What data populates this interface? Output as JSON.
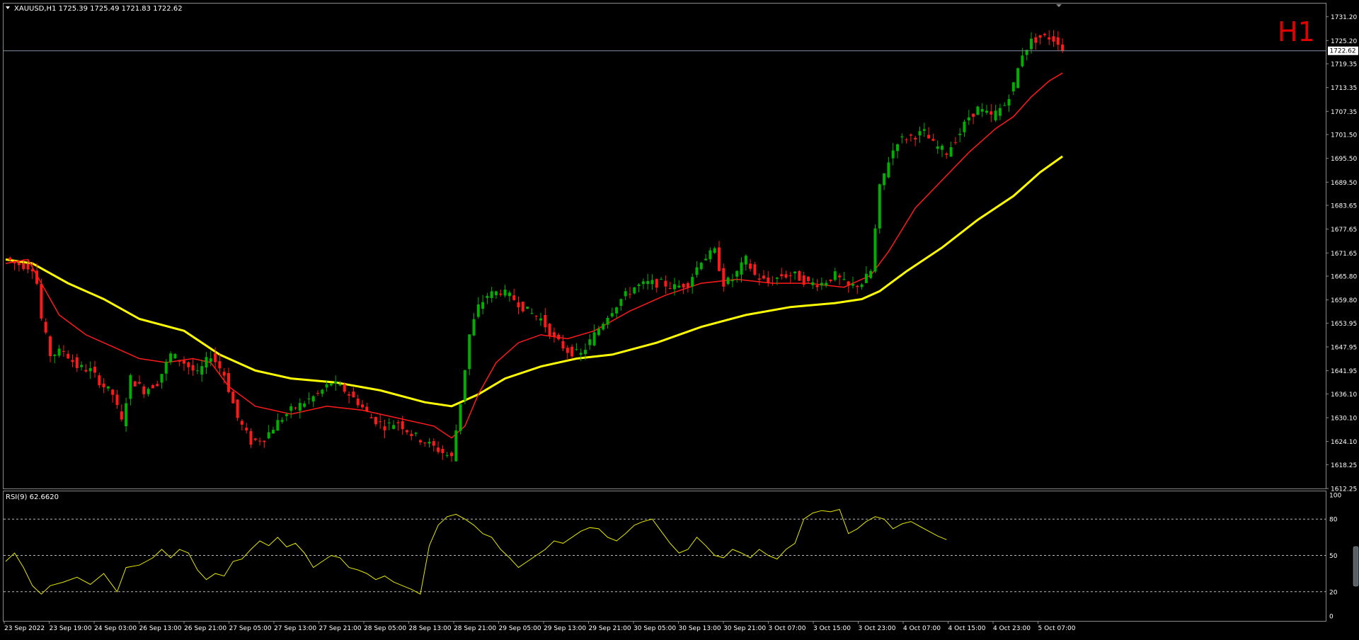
{
  "header": {
    "symbol_line": "XAUUSD,H1  1725.39 1725.49 1721.83 1722.62",
    "timeframe_badge": "H1"
  },
  "price_axis": {
    "ticks": [
      "1731.20",
      "1725.20",
      "1719.35",
      "1713.35",
      "1707.35",
      "1701.50",
      "1695.50",
      "1689.50",
      "1683.65",
      "1677.65",
      "1671.65",
      "1665.80",
      "1659.80",
      "1653.95",
      "1647.95",
      "1641.95",
      "1636.10",
      "1630.10",
      "1624.10",
      "1618.25",
      "1612.25"
    ],
    "current_price_label": "1722.62"
  },
  "rsi_panel": {
    "label": "RSI(9) 62.6620",
    "levels": [
      "100",
      "80",
      "50",
      "20",
      "0"
    ]
  },
  "time_axis": {
    "labels": [
      "23 Sep 2022",
      "23 Sep 19:00",
      "24 Sep 03:00",
      "26 Sep 13:00",
      "26 Sep 21:00",
      "27 Sep 05:00",
      "27 Sep 13:00",
      "27 Sep 21:00",
      "28 Sep 05:00",
      "28 Sep 13:00",
      "28 Sep 21:00",
      "29 Sep 05:00",
      "29 Sep 13:00",
      "29 Sep 21:00",
      "30 Sep 05:00",
      "30 Sep 13:00",
      "30 Sep 21:00",
      "3 Oct 07:00",
      "3 Oct 15:00",
      "3 Oct 23:00",
      "4 Oct 07:00",
      "4 Oct 15:00",
      "4 Oct 23:00",
      "5 Oct 07:00"
    ]
  },
  "chart_data": {
    "type": "candlestick",
    "symbol": "XAUUSD",
    "timeframe": "H1",
    "ylim": [
      1612.25,
      1734.0
    ],
    "current_price": 1722.62,
    "rsi_ylim": [
      0,
      100
    ],
    "rsi_levels": [
      20,
      50,
      80
    ],
    "rsi_last": 62.662,
    "colors": {
      "bull": "#00B000",
      "bear": "#FF1A1A",
      "ma_fast": "#FF1A1A",
      "ma_slow": "#FFFF00",
      "rsi": "#E6E600",
      "axis_text": "#FFFFFF",
      "grid": "#5A5A5A",
      "badge": "#E00000"
    },
    "anchors": [
      [
        0,
        1670.5
      ],
      [
        2,
        1669
      ],
      [
        6,
        1668
      ],
      [
        7,
        1664
      ],
      [
        8,
        1655
      ],
      [
        10,
        1646
      ],
      [
        13,
        1647
      ],
      [
        16,
        1643
      ],
      [
        19,
        1642
      ],
      [
        22,
        1638
      ],
      [
        24,
        1636
      ],
      [
        26,
        1629
      ],
      [
        28,
        1640
      ],
      [
        31,
        1637
      ],
      [
        34,
        1639
      ],
      [
        37,
        1646
      ],
      [
        40,
        1644
      ],
      [
        43,
        1641
      ],
      [
        46,
        1646
      ],
      [
        49,
        1641
      ],
      [
        52,
        1630
      ],
      [
        55,
        1624
      ],
      [
        58,
        1625
      ],
      [
        61,
        1629
      ],
      [
        64,
        1632
      ],
      [
        67,
        1634
      ],
      [
        70,
        1636
      ],
      [
        73,
        1639
      ],
      [
        76,
        1637
      ],
      [
        79,
        1634
      ],
      [
        82,
        1630
      ],
      [
        85,
        1628
      ],
      [
        88,
        1629
      ],
      [
        91,
        1626
      ],
      [
        94,
        1624
      ],
      [
        97,
        1622
      ],
      [
        100,
        1620
      ],
      [
        102,
        1634
      ],
      [
        104,
        1651
      ],
      [
        106,
        1658
      ],
      [
        108,
        1661
      ],
      [
        111,
        1662
      ],
      [
        114,
        1660
      ],
      [
        117,
        1657
      ],
      [
        120,
        1655
      ],
      [
        123,
        1650
      ],
      [
        126,
        1647
      ],
      [
        129,
        1646
      ],
      [
        132,
        1651
      ],
      [
        135,
        1656
      ],
      [
        138,
        1660
      ],
      [
        141,
        1663
      ],
      [
        144,
        1664
      ],
      [
        147,
        1664
      ],
      [
        150,
        1663
      ],
      [
        153,
        1664
      ],
      [
        156,
        1670
      ],
      [
        159,
        1672
      ],
      [
        161,
        1664
      ],
      [
        163,
        1665
      ],
      [
        166,
        1670
      ],
      [
        168,
        1666
      ],
      [
        171,
        1664
      ],
      [
        174,
        1666
      ],
      [
        177,
        1666
      ],
      [
        180,
        1664
      ],
      [
        183,
        1664
      ],
      [
        186,
        1666
      ],
      [
        189,
        1663
      ],
      [
        192,
        1664
      ],
      [
        194,
        1667
      ],
      [
        196,
        1688
      ],
      [
        198,
        1695
      ],
      [
        200,
        1700
      ],
      [
        203,
        1701
      ],
      [
        206,
        1702
      ],
      [
        208,
        1699
      ],
      [
        211,
        1697
      ],
      [
        214,
        1702
      ],
      [
        216,
        1706
      ],
      [
        218,
        1708
      ],
      [
        221,
        1706
      ],
      [
        224,
        1709
      ],
      [
        226,
        1714
      ],
      [
        228,
        1722
      ],
      [
        230,
        1725
      ],
      [
        232,
        1726
      ],
      [
        234,
        1726
      ],
      [
        236,
        1725
      ],
      [
        237,
        1722.6
      ]
    ],
    "ma_fast": [
      [
        0,
        1669
      ],
      [
        5,
        1670
      ],
      [
        8,
        1664
      ],
      [
        12,
        1656
      ],
      [
        18,
        1651
      ],
      [
        24,
        1648
      ],
      [
        30,
        1645
      ],
      [
        36,
        1644
      ],
      [
        42,
        1645
      ],
      [
        46,
        1644
      ],
      [
        50,
        1638
      ],
      [
        56,
        1633
      ],
      [
        64,
        1631
      ],
      [
        72,
        1633
      ],
      [
        80,
        1632
      ],
      [
        88,
        1630
      ],
      [
        96,
        1628
      ],
      [
        100,
        1625
      ],
      [
        103,
        1628
      ],
      [
        106,
        1636
      ],
      [
        110,
        1644
      ],
      [
        115,
        1649
      ],
      [
        120,
        1651
      ],
      [
        126,
        1650
      ],
      [
        132,
        1652
      ],
      [
        140,
        1657
      ],
      [
        148,
        1661
      ],
      [
        156,
        1664
      ],
      [
        164,
        1665
      ],
      [
        172,
        1664
      ],
      [
        180,
        1664
      ],
      [
        188,
        1663
      ],
      [
        194,
        1666
      ],
      [
        198,
        1672
      ],
      [
        204,
        1683
      ],
      [
        210,
        1690
      ],
      [
        216,
        1697
      ],
      [
        222,
        1703
      ],
      [
        226,
        1706
      ],
      [
        230,
        1711
      ],
      [
        234,
        1715
      ],
      [
        237,
        1717
      ]
    ],
    "ma_slow": [
      [
        0,
        1670
      ],
      [
        6,
        1669
      ],
      [
        14,
        1664
      ],
      [
        22,
        1660
      ],
      [
        30,
        1655
      ],
      [
        40,
        1652
      ],
      [
        48,
        1646
      ],
      [
        56,
        1642
      ],
      [
        64,
        1640
      ],
      [
        74,
        1639
      ],
      [
        84,
        1637
      ],
      [
        94,
        1634
      ],
      [
        100,
        1633
      ],
      [
        106,
        1636
      ],
      [
        112,
        1640
      ],
      [
        120,
        1643
      ],
      [
        128,
        1645
      ],
      [
        136,
        1646
      ],
      [
        146,
        1649
      ],
      [
        156,
        1653
      ],
      [
        166,
        1656
      ],
      [
        176,
        1658
      ],
      [
        186,
        1659
      ],
      [
        192,
        1660
      ],
      [
        196,
        1662
      ],
      [
        202,
        1667
      ],
      [
        210,
        1673
      ],
      [
        218,
        1680
      ],
      [
        226,
        1686
      ],
      [
        232,
        1692
      ],
      [
        237,
        1696
      ]
    ],
    "rsi": [
      [
        0,
        45
      ],
      [
        2,
        52
      ],
      [
        4,
        40
      ],
      [
        6,
        25
      ],
      [
        8,
        18
      ],
      [
        10,
        25
      ],
      [
        13,
        28
      ],
      [
        16,
        32
      ],
      [
        19,
        26
      ],
      [
        22,
        35
      ],
      [
        25,
        20
      ],
      [
        27,
        40
      ],
      [
        30,
        42
      ],
      [
        33,
        48
      ],
      [
        35,
        55
      ],
      [
        37,
        48
      ],
      [
        39,
        55
      ],
      [
        41,
        52
      ],
      [
        43,
        38
      ],
      [
        45,
        30
      ],
      [
        47,
        35
      ],
      [
        49,
        33
      ],
      [
        51,
        45
      ],
      [
        53,
        47
      ],
      [
        55,
        55
      ],
      [
        57,
        62
      ],
      [
        59,
        58
      ],
      [
        61,
        65
      ],
      [
        63,
        57
      ],
      [
        65,
        60
      ],
      [
        67,
        52
      ],
      [
        69,
        40
      ],
      [
        71,
        45
      ],
      [
        73,
        50
      ],
      [
        75,
        48
      ],
      [
        77,
        40
      ],
      [
        79,
        38
      ],
      [
        81,
        35
      ],
      [
        83,
        30
      ],
      [
        85,
        33
      ],
      [
        87,
        28
      ],
      [
        89,
        25
      ],
      [
        91,
        22
      ],
      [
        93,
        18
      ],
      [
        95,
        58
      ],
      [
        97,
        75
      ],
      [
        99,
        82
      ],
      [
        101,
        84
      ],
      [
        103,
        80
      ],
      [
        105,
        75
      ],
      [
        107,
        68
      ],
      [
        109,
        65
      ],
      [
        111,
        55
      ],
      [
        113,
        48
      ],
      [
        115,
        40
      ],
      [
        117,
        45
      ],
      [
        119,
        50
      ],
      [
        121,
        55
      ],
      [
        123,
        62
      ],
      [
        125,
        60
      ],
      [
        127,
        65
      ],
      [
        129,
        70
      ],
      [
        131,
        73
      ],
      [
        133,
        72
      ],
      [
        135,
        65
      ],
      [
        137,
        62
      ],
      [
        139,
        68
      ],
      [
        141,
        75
      ],
      [
        143,
        78
      ],
      [
        145,
        80
      ],
      [
        147,
        70
      ],
      [
        149,
        60
      ],
      [
        151,
        52
      ],
      [
        153,
        55
      ],
      [
        155,
        65
      ],
      [
        157,
        58
      ],
      [
        159,
        50
      ],
      [
        161,
        48
      ],
      [
        163,
        55
      ],
      [
        165,
        52
      ],
      [
        167,
        48
      ],
      [
        169,
        55
      ],
      [
        171,
        50
      ],
      [
        173,
        47
      ],
      [
        175,
        55
      ],
      [
        177,
        60
      ],
      [
        179,
        80
      ],
      [
        181,
        85
      ],
      [
        183,
        87
      ],
      [
        185,
        86
      ],
      [
        187,
        88
      ],
      [
        189,
        68
      ],
      [
        191,
        72
      ],
      [
        193,
        78
      ],
      [
        195,
        82
      ],
      [
        197,
        80
      ],
      [
        199,
        72
      ],
      [
        201,
        76
      ],
      [
        203,
        78
      ],
      [
        205,
        74
      ],
      [
        207,
        70
      ],
      [
        209,
        66
      ],
      [
        211,
        63
      ]
    ]
  }
}
